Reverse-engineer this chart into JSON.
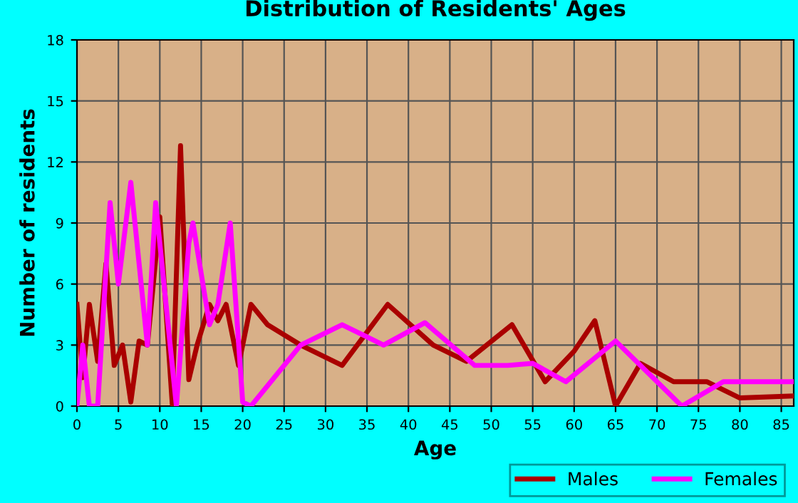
{
  "chart_data": {
    "type": "line",
    "title": "Distribution of Residents' Ages",
    "xlabel": "Age",
    "ylabel": "Number of residents",
    "xlim": [
      0,
      86.5
    ],
    "xticks": [
      0,
      5,
      10,
      15,
      20,
      25,
      30,
      35,
      40,
      45,
      50,
      55,
      60,
      65,
      70,
      75,
      80,
      85
    ],
    "ylim": [
      0,
      18
    ],
    "yticks": [
      0,
      3,
      6,
      9,
      12,
      15,
      18
    ],
    "grid": true,
    "legend": "bottom right",
    "marker": "none",
    "line_style": "solid",
    "series": [
      {
        "name": "Males",
        "color": "#aa0000",
        "x": [
          0,
          0.7,
          1.5,
          2.5,
          3.5,
          4.5,
          5.5,
          6.5,
          7.5,
          8.5,
          10,
          11.5,
          12.5,
          13.5,
          14.5,
          16,
          17,
          18,
          19.5,
          21,
          23,
          27,
          32,
          37.5,
          43,
          47,
          52.5,
          56.5,
          60,
          62.5,
          65,
          68,
          72,
          76,
          80,
          86.5
        ],
        "values": [
          5,
          1.4,
          5,
          2.2,
          7,
          2,
          3,
          0.2,
          3.2,
          3,
          9.3,
          0.1,
          12.8,
          1.3,
          3,
          5,
          4.2,
          5,
          2,
          5,
          4,
          3,
          2,
          5,
          3,
          2.2,
          4,
          1.2,
          2.7,
          4.2,
          0,
          2.1,
          1.2,
          1.2,
          0.4,
          0.5
        ]
      },
      {
        "name": "Females",
        "color": "#ff00ff",
        "x": [
          0,
          0.7,
          1.5,
          2.5,
          4,
          5,
          6.5,
          8.5,
          9.5,
          10.5,
          12,
          13.5,
          14,
          16,
          17,
          18.5,
          20,
          21,
          23,
          27,
          32,
          37,
          42,
          48,
          52,
          55,
          59,
          65,
          73,
          78,
          86.5
        ],
        "values": [
          0,
          3,
          0,
          0,
          10,
          6,
          11,
          3,
          10,
          6,
          0,
          8,
          9,
          4,
          5,
          9,
          0.2,
          0,
          1,
          3,
          4,
          3,
          4.1,
          2,
          2,
          2.1,
          1.2,
          3.2,
          0,
          1.2,
          1.2
        ]
      }
    ]
  }
}
